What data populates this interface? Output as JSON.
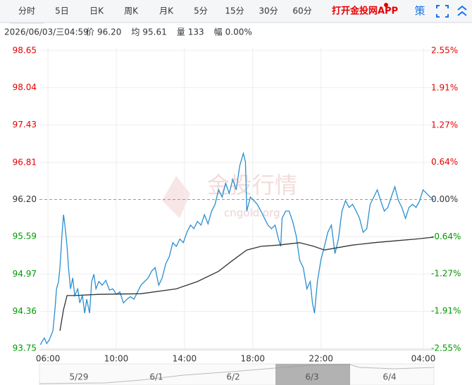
{
  "tabs": [
    "分时",
    "5日",
    "日K",
    "周K",
    "月K",
    "5分",
    "15分",
    "30分",
    "60分"
  ],
  "active_tab": "分时",
  "app_link": "打开金投网APP",
  "strategy": "策",
  "info": {
    "time": "2026/06/03/三04:59",
    "items": [
      {
        "label": "价",
        "value": "96.20"
      },
      {
        "label": "均",
        "value": "95.61"
      },
      {
        "label": "量",
        "value": "133"
      },
      {
        "label": "幅",
        "value": "0.00%"
      }
    ]
  },
  "watermark": {
    "title": "金投行情",
    "url": "cngold.org"
  },
  "navigator": {
    "labels": [
      "5/29",
      "6/1",
      "6/2",
      "6/3",
      "6/4"
    ]
  },
  "chart_data": {
    "type": "line",
    "xlim": [
      5.5,
      28.62
    ],
    "xticks": [
      {
        "value": 6,
        "label": "06:00"
      },
      {
        "value": 10,
        "label": "10:00"
      },
      {
        "value": 14,
        "label": "14:00"
      },
      {
        "value": 18,
        "label": "18:00"
      },
      {
        "value": 22,
        "label": "22:00"
      },
      {
        "value": 28,
        "label": "04:00"
      }
    ],
    "ylim": [
      93.75,
      98.65
    ],
    "yticks": [
      98.65,
      98.04,
      97.43,
      96.81,
      {
        "value": 96.2,
        "label": "96.20"
      },
      95.59,
      94.97,
      94.36,
      93.75
    ],
    "y2lim": [
      -2.55,
      2.55
    ],
    "y2ticks": [
      {
        "value": 2.55,
        "label": "2.55%"
      },
      {
        "value": 1.91,
        "label": "1.91%"
      },
      {
        "value": 1.27,
        "label": "1.27%"
      },
      {
        "value": 0.64,
        "label": "0.64%"
      },
      {
        "value": 0,
        "label": "0.00%"
      },
      {
        "value": -0.64,
        "label": "-0.64%"
      },
      {
        "value": -1.27,
        "label": "-1.27%"
      },
      {
        "value": -1.91,
        "label": "-1.91%"
      },
      {
        "value": -2.55,
        "label": "-2.55%"
      }
    ],
    "ref_line": 96.2,
    "up_color": "#e60000",
    "down_color": "#009900",
    "flat_color": "#333333",
    "grid": true,
    "series": [
      {
        "color": "#2a8fd0",
        "x": [
          5.55,
          5.67,
          5.79,
          5.92,
          6.08,
          6.29,
          6.41,
          6.5,
          6.62,
          6.7,
          6.83,
          6.91,
          6.99,
          7.12,
          7.2,
          7.32,
          7.45,
          7.57,
          7.74,
          7.86,
          8.02,
          8.15,
          8.27,
          8.44,
          8.56,
          8.69,
          8.81,
          8.98,
          9.18,
          9.39,
          9.6,
          9.8,
          10.01,
          10.21,
          10.42,
          10.63,
          10.83,
          11.04,
          11.25,
          11.45,
          11.66,
          11.87,
          12.07,
          12.28,
          12.49,
          12.69,
          12.9,
          13.11,
          13.31,
          13.52,
          13.73,
          13.93,
          14.14,
          14.35,
          14.55,
          14.76,
          14.97,
          15.17,
          15.38,
          15.59,
          15.79,
          16.0,
          16.21,
          16.41,
          16.62,
          16.83,
          17.03,
          17.24,
          17.45,
          17.57,
          17.65,
          17.86,
          18.07,
          18.27,
          18.48,
          18.69,
          18.89,
          19.1,
          19.31,
          19.51,
          19.64,
          19.72,
          19.93,
          20.13,
          20.34,
          20.55,
          20.75,
          20.96,
          21.17,
          21.37,
          21.5,
          21.62,
          21.79,
          21.99,
          22.2,
          22.4,
          22.61,
          22.82,
          23.02,
          23.23,
          23.44,
          23.64,
          23.85,
          24.06,
          24.26,
          24.47,
          24.68,
          24.88,
          25.09,
          25.3,
          25.5,
          25.71,
          25.92,
          26.12,
          26.33,
          26.54,
          26.74,
          26.95,
          27.16,
          27.36,
          27.57,
          27.78,
          27.98,
          28.19,
          28.4,
          28.6
        ],
        "values": [
          93.81,
          93.87,
          93.92,
          93.83,
          93.89,
          94.04,
          94.39,
          94.73,
          94.85,
          95.08,
          95.66,
          95.95,
          95.78,
          95.43,
          95.08,
          94.73,
          94.91,
          94.62,
          94.73,
          94.5,
          94.62,
          94.33,
          94.56,
          94.33,
          94.85,
          94.97,
          94.73,
          94.85,
          94.79,
          94.87,
          94.71,
          94.73,
          94.64,
          94.68,
          94.5,
          94.56,
          94.6,
          94.56,
          94.68,
          94.79,
          94.85,
          94.91,
          95.02,
          95.08,
          94.79,
          94.91,
          95.14,
          95.26,
          95.49,
          95.43,
          95.55,
          95.49,
          95.66,
          95.78,
          95.72,
          95.84,
          95.78,
          95.95,
          95.8,
          96.01,
          96.12,
          96.36,
          96.24,
          96.47,
          96.3,
          96.53,
          96.36,
          96.76,
          96.96,
          96.82,
          96.01,
          96.24,
          96.18,
          96.12,
          96.01,
          95.89,
          95.78,
          95.72,
          95.78,
          95.55,
          95.43,
          95.89,
          96.01,
          96.01,
          95.84,
          95.6,
          95.2,
          95.08,
          94.73,
          94.85,
          94.5,
          94.33,
          94.85,
          95.2,
          95.43,
          95.66,
          95.78,
          95.31,
          95.55,
          96.01,
          96.18,
          96.07,
          96.12,
          96.01,
          95.89,
          95.66,
          95.72,
          96.12,
          96.24,
          96.36,
          96.18,
          96.01,
          96.07,
          96.24,
          96.41,
          96.18,
          96.07,
          95.89,
          96.07,
          96.12,
          96.07,
          96.18,
          96.36,
          96.3,
          96.24,
          96.2
        ]
      },
      {
        "color": "#333333",
        "x": [
          6.7,
          6.91,
          7.12,
          7.53,
          8.98,
          11.45,
          13.52,
          14.76,
          16.0,
          16.83,
          17.65,
          18.48,
          19.51,
          20.75,
          21.58,
          22.2,
          23.02,
          23.85,
          25.09,
          26.33,
          27.57,
          28.6
        ],
        "values": [
          94.04,
          94.39,
          94.62,
          94.62,
          94.64,
          94.65,
          94.73,
          94.85,
          95.02,
          95.2,
          95.37,
          95.43,
          95.45,
          95.49,
          95.43,
          95.37,
          95.41,
          95.45,
          95.49,
          95.52,
          95.55,
          95.58
        ]
      }
    ]
  }
}
